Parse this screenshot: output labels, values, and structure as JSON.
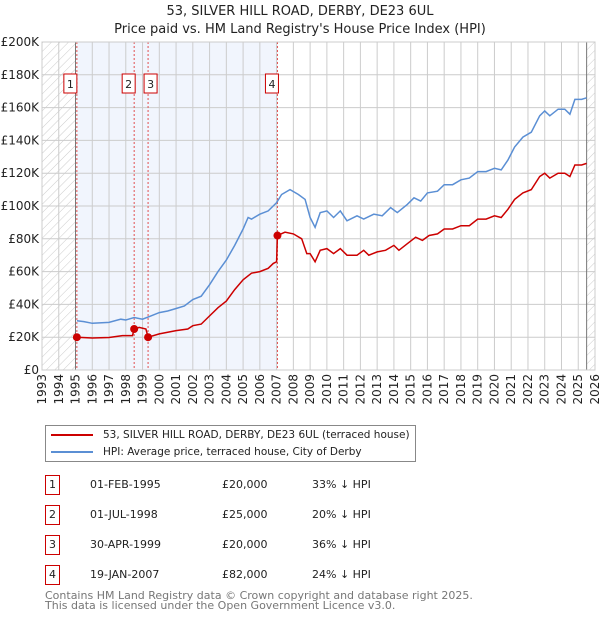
{
  "chart_data": {
    "type": "line",
    "title": "53, SILVER HILL ROAD, DERBY, DE23 6UL",
    "subtitle": "Price paid vs. HM Land Registry's House Price Index (HPI)",
    "xlim": [
      1993,
      2026
    ],
    "ylim": [
      0,
      200000
    ],
    "y_ticks": [
      {
        "v": 0,
        "label": "£0"
      },
      {
        "v": 20000,
        "label": "£20K"
      },
      {
        "v": 40000,
        "label": "£40K"
      },
      {
        "v": 60000,
        "label": "£60K"
      },
      {
        "v": 80000,
        "label": "£80K"
      },
      {
        "v": 100000,
        "label": "£100K"
      },
      {
        "v": 120000,
        "label": "£120K"
      },
      {
        "v": 140000,
        "label": "£140K"
      },
      {
        "v": 160000,
        "label": "£160K"
      },
      {
        "v": 180000,
        "label": "£180K"
      },
      {
        "v": 200000,
        "label": "£200K"
      }
    ],
    "x_ticks": [
      "1993",
      "1994",
      "1995",
      "1996",
      "1997",
      "1998",
      "1999",
      "2000",
      "2001",
      "2002",
      "2003",
      "2004",
      "2005",
      "2006",
      "2007",
      "2008",
      "2009",
      "2010",
      "2011",
      "2012",
      "2013",
      "2014",
      "2015",
      "2016",
      "2017",
      "2018",
      "2019",
      "2020",
      "2021",
      "2022",
      "2023",
      "2024",
      "2025",
      "2026"
    ],
    "grid": true,
    "hatched_before": 1995.0,
    "hatched_after": 2025.5,
    "shaded_range": [
      1995.08,
      2007.05
    ],
    "series": [
      {
        "name": "53, SILVER HILL ROAD, DERBY, DE23 6UL (terraced house)",
        "color": "#cc0000",
        "x": [
          1995.08,
          1996,
          1997,
          1997.8,
          1998.4,
          1998.5,
          1998.8,
          1999.2,
          1999.33,
          2000,
          2001,
          2001.7,
          2002,
          2002.5,
          2003,
          2003.5,
          2004,
          2004.5,
          2005,
          2005.5,
          2006,
          2006.5,
          2006.8,
          2007.0,
          2007.05,
          2007.5,
          2008,
          2008.5,
          2008.8,
          2009,
          2009.3,
          2009.6,
          2010,
          2010.4,
          2010.8,
          2011.2,
          2011.8,
          2012.2,
          2012.5,
          2013,
          2013.5,
          2014,
          2014.3,
          2014.8,
          2015.3,
          2015.7,
          2016.1,
          2016.6,
          2017,
          2017.5,
          2018,
          2018.5,
          2019,
          2019.5,
          2020,
          2020.4,
          2020.8,
          2021.2,
          2021.7,
          2022.2,
          2022.7,
          2023,
          2023.3,
          2023.8,
          2024.2,
          2024.5,
          2024.8,
          2025.2,
          2025.5
        ],
        "y": [
          20000,
          19500,
          19800,
          21000,
          21000,
          25000,
          26000,
          25000,
          20000,
          22000,
          24000,
          25000,
          27000,
          28000,
          33000,
          38000,
          42000,
          49000,
          55000,
          59000,
          60000,
          62000,
          65000,
          66000,
          82000,
          84000,
          83000,
          80000,
          71000,
          71000,
          66000,
          73000,
          74000,
          71000,
          74000,
          70000,
          70000,
          73000,
          70000,
          72000,
          73000,
          76000,
          73000,
          77000,
          81000,
          79000,
          82000,
          83000,
          86000,
          86000,
          88000,
          88000,
          92000,
          92000,
          94000,
          93000,
          98000,
          104000,
          108000,
          110000,
          118000,
          120000,
          117000,
          120000,
          120000,
          118000,
          125000,
          125000,
          126000
        ]
      },
      {
        "name": "HPI: Average price, terraced house, City of Derby",
        "color": "#5b8fd4",
        "x": [
          1995.08,
          1995.5,
          1996,
          1997,
          1997.7,
          1998,
          1998.5,
          1999,
          1999.5,
          2000,
          2000.5,
          2001,
          2001.5,
          2002,
          2002.5,
          2003,
          2003.5,
          2004,
          2004.5,
          2005,
          2005.3,
          2005.5,
          2006,
          2006.5,
          2007,
          2007.3,
          2007.8,
          2008.3,
          2008.7,
          2009,
          2009.3,
          2009.6,
          2010,
          2010.4,
          2010.8,
          2011.2,
          2011.8,
          2012.2,
          2012.8,
          2013.3,
          2013.8,
          2014.2,
          2014.8,
          2015.2,
          2015.6,
          2016,
          2016.6,
          2017,
          2017.5,
          2018,
          2018.5,
          2019,
          2019.5,
          2020,
          2020.4,
          2020.8,
          2021.2,
          2021.7,
          2022.2,
          2022.7,
          2023,
          2023.3,
          2023.8,
          2024.2,
          2024.5,
          2024.8,
          2025.2,
          2025.5
        ],
        "y": [
          30000,
          29500,
          28500,
          29000,
          31000,
          30500,
          32000,
          31000,
          33000,
          35000,
          36000,
          37500,
          39000,
          43000,
          45000,
          52000,
          60000,
          67000,
          76000,
          86000,
          93000,
          92000,
          95000,
          97000,
          102000,
          107000,
          110000,
          107000,
          104000,
          93000,
          87000,
          96000,
          97000,
          93000,
          97000,
          91000,
          94000,
          92000,
          95000,
          94000,
          99000,
          96000,
          101000,
          105000,
          103000,
          108000,
          109000,
          113000,
          113000,
          116000,
          117000,
          121000,
          121000,
          123000,
          122000,
          128000,
          136000,
          142000,
          145000,
          155000,
          158000,
          155000,
          159000,
          159000,
          156000,
          165000,
          165000,
          166000
        ]
      }
    ],
    "sales": [
      {
        "n": "1",
        "date": "01-FEB-1995",
        "x": 1995.08,
        "price": "£20,000",
        "value": 20000,
        "hpi": "33% ↓ HPI"
      },
      {
        "n": "2",
        "date": "01-JUL-1998",
        "x": 1998.5,
        "price": "£25,000",
        "value": 25000,
        "hpi": "20% ↓ HPI"
      },
      {
        "n": "3",
        "date": "30-APR-1999",
        "x": 1999.33,
        "price": "£20,000",
        "value": 20000,
        "hpi": "36% ↓ HPI"
      },
      {
        "n": "4",
        "date": "19-JAN-2007",
        "x": 2007.05,
        "price": "£82,000",
        "value": 82000,
        "hpi": "24% ↓ HPI"
      }
    ],
    "legend_position": "below"
  },
  "footer": {
    "line1": "Contains HM Land Registry data © Crown copyright and database right 2025.",
    "line2": "This data is licensed under the Open Government Licence v3.0."
  }
}
